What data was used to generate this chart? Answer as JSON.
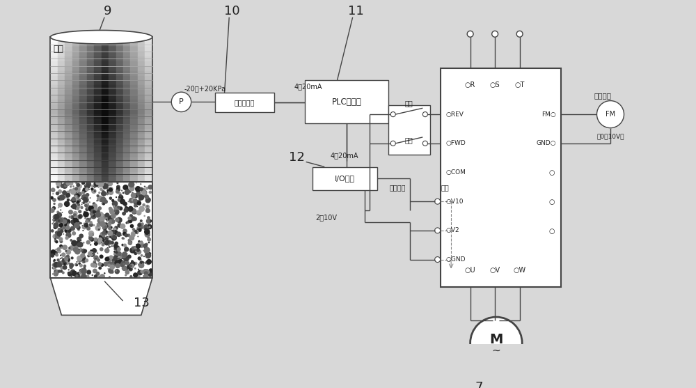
{
  "bg_color": "#d8d8d8",
  "line_color": "#444444",
  "text_color": "#222222",
  "labels": {
    "oil_gas": "油气",
    "num9": "9",
    "num10": "10",
    "num11": "11",
    "num12": "12",
    "num13": "13",
    "num7": "7",
    "pressure_range": "-20～+20KPa",
    "digital_manometer": "数字微压表",
    "signal_4_20_1": "4～20mA",
    "signal_4_20_2": "4～20mA",
    "signal_2_10": "2～10V",
    "plc": "PLC控制器",
    "io_module": "I/O模块",
    "reverse": "反转",
    "forward": "正转",
    "speed_adj": "速度调节",
    "shield": "屏蔽",
    "rpm_display": "转速显示",
    "voltage_range": "（0－10V）"
  }
}
